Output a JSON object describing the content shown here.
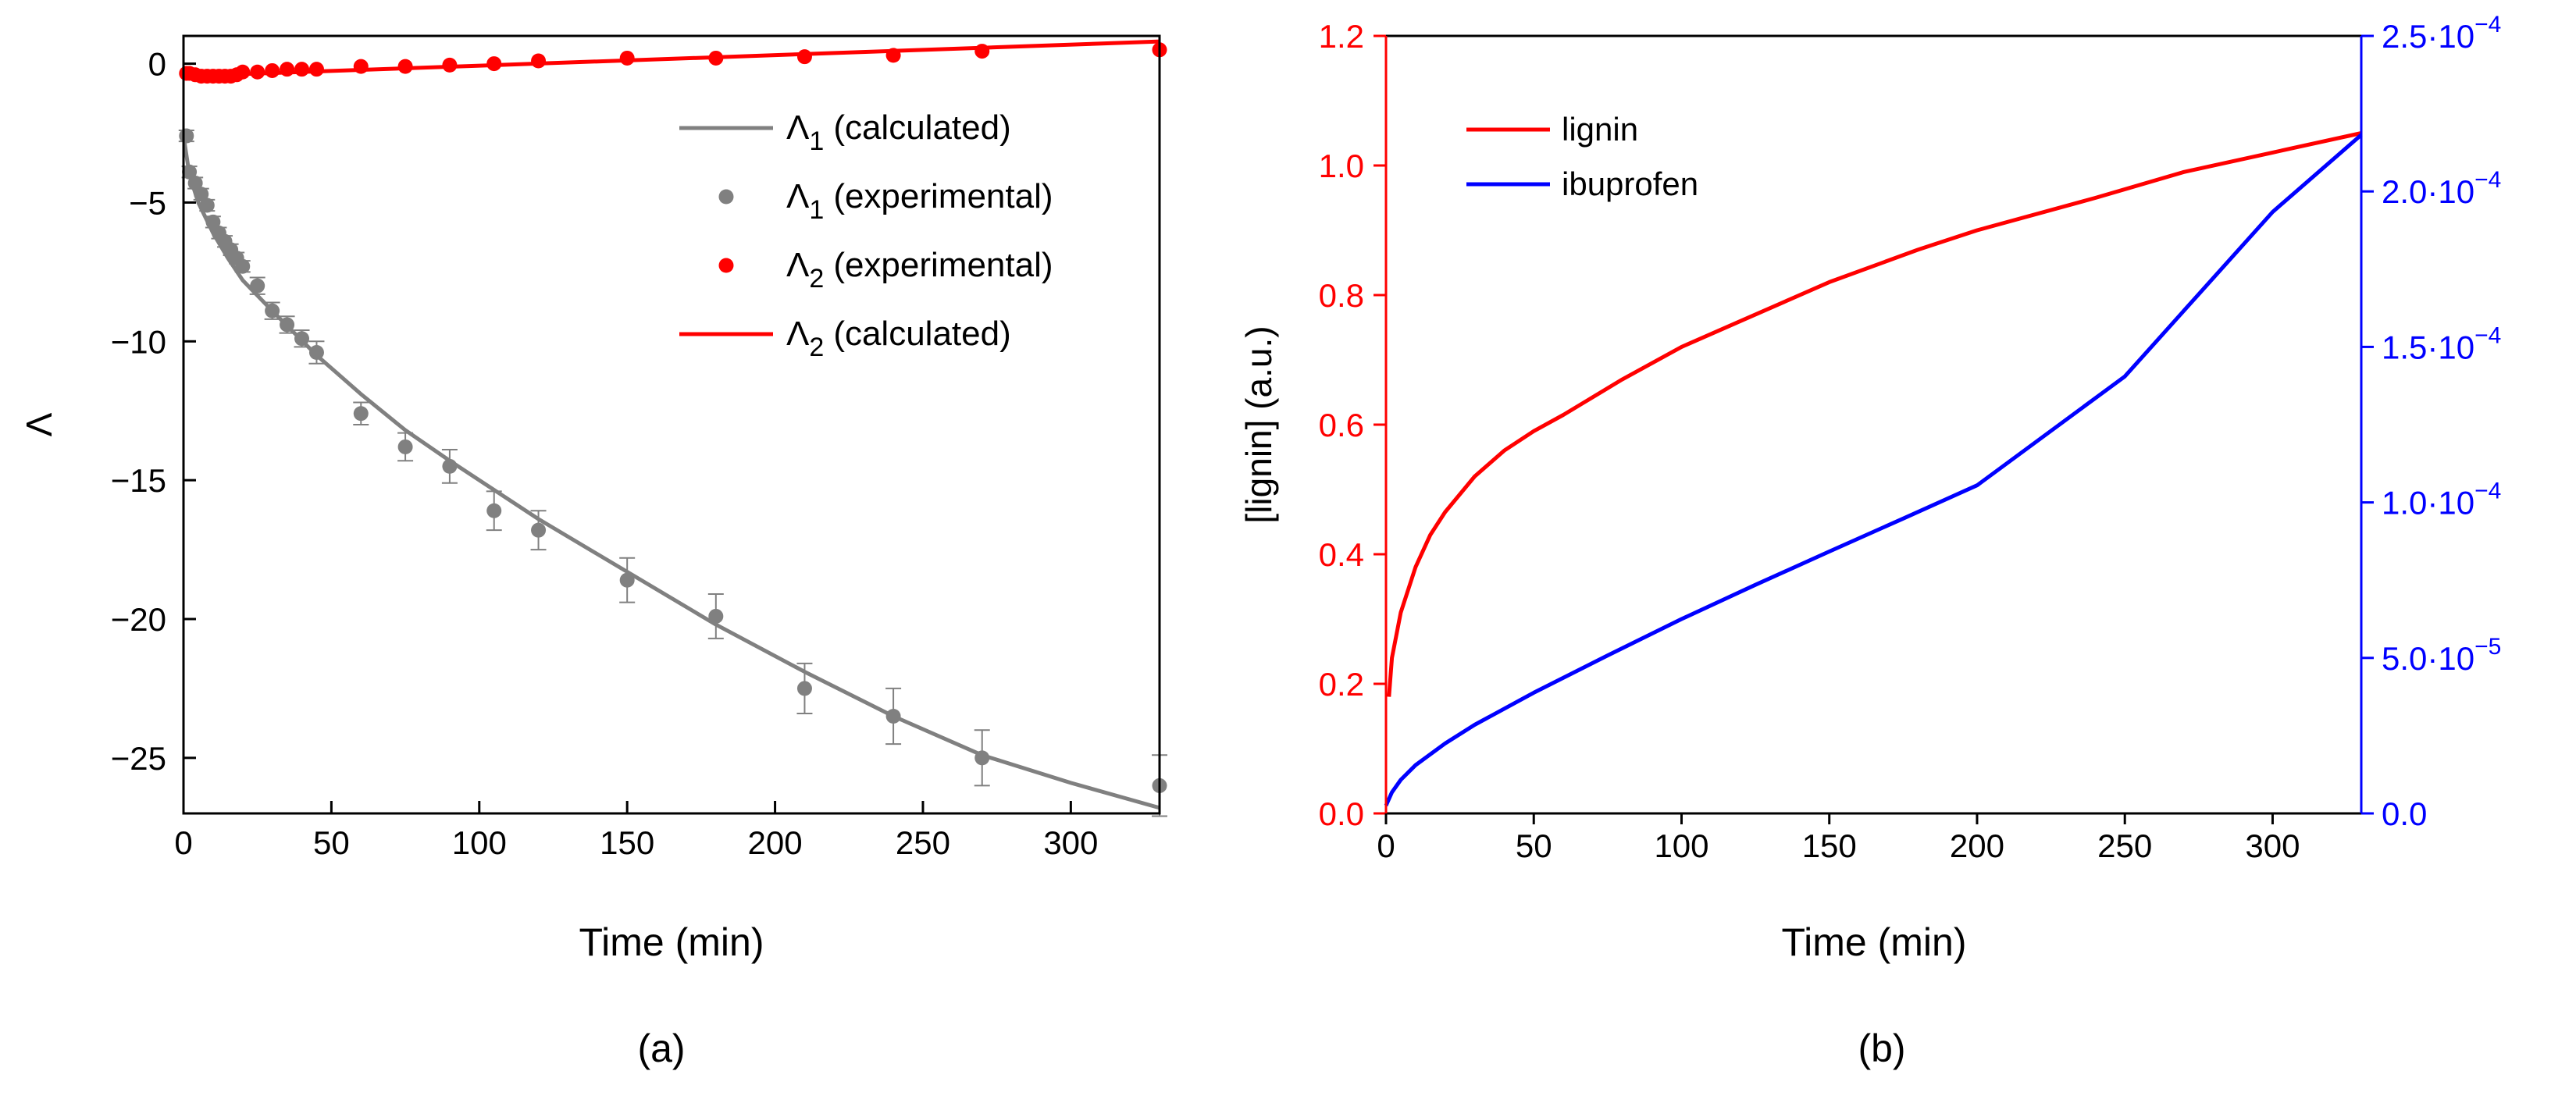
{
  "figure": {
    "panel_a_caption": "(a)",
    "panel_b_caption": "(b)"
  },
  "chart_data": [
    {
      "type": "scatter",
      "panel": "a",
      "xlabel": "Time (min)",
      "ylabel": "Λ",
      "xlim": [
        0,
        330
      ],
      "ylim": [
        -27,
        1
      ],
      "xticks": [
        0,
        50,
        100,
        150,
        200,
        250,
        300
      ],
      "yticks": [
        0,
        -5,
        -10,
        -15,
        -20,
        -25
      ],
      "legend_position": "top-right",
      "legend": [
        {
          "symbol": "Λ",
          "sub": "1",
          "text": "(calculated)",
          "style": "line",
          "color": "#808080"
        },
        {
          "symbol": "Λ",
          "sub": "1",
          "text": "(experimental)",
          "style": "marker",
          "color": "#808080"
        },
        {
          "symbol": "Λ",
          "sub": "2",
          "text": "(experimental)",
          "style": "marker",
          "color": "#ff0000"
        },
        {
          "symbol": "Λ",
          "sub": "2",
          "text": "(calculated)",
          "style": "line",
          "color": "#ff0000"
        }
      ],
      "series": [
        {
          "name": "Λ1 (experimental)",
          "style": "marker",
          "color": "#808080",
          "x": [
            1,
            2,
            4,
            6,
            8,
            10,
            12,
            14,
            16,
            18,
            20,
            25,
            30,
            35,
            40,
            45,
            60,
            75,
            90,
            105,
            120,
            150,
            180,
            210,
            240,
            270,
            330
          ],
          "y": [
            -2.6,
            -3.9,
            -4.3,
            -4.7,
            -5.1,
            -5.7,
            -6.1,
            -6.4,
            -6.7,
            -7.0,
            -7.3,
            -8.0,
            -8.9,
            -9.4,
            -9.9,
            -10.4,
            -12.6,
            -13.8,
            -14.5,
            -16.1,
            -16.8,
            -18.6,
            -19.9,
            -22.5,
            -23.5,
            -25.0,
            -26.0
          ],
          "err": [
            0.2,
            0.2,
            0.2,
            0.2,
            0.2,
            0.2,
            0.2,
            0.2,
            0.2,
            0.2,
            0.2,
            0.3,
            0.3,
            0.3,
            0.3,
            0.4,
            0.4,
            0.5,
            0.6,
            0.7,
            0.7,
            0.8,
            0.8,
            0.9,
            1.0,
            1.0,
            1.1
          ]
        },
        {
          "name": "Λ1 (calculated)",
          "style": "line",
          "color": "#808080",
          "x": [
            0,
            2,
            5,
            10,
            15,
            20,
            30,
            45,
            60,
            75,
            90,
            120,
            150,
            180,
            210,
            240,
            270,
            300,
            330
          ],
          "y": [
            -2.6,
            -4.0,
            -5.0,
            -6.1,
            -7.0,
            -7.8,
            -8.9,
            -10.5,
            -11.9,
            -13.2,
            -14.3,
            -16.4,
            -18.3,
            -20.2,
            -21.9,
            -23.5,
            -24.9,
            -25.9,
            -26.8
          ]
        },
        {
          "name": "Λ2 (experimental)",
          "style": "marker",
          "color": "#ff0000",
          "x": [
            1,
            2,
            4,
            6,
            8,
            10,
            12,
            14,
            16,
            18,
            20,
            25,
            30,
            35,
            40,
            45,
            60,
            75,
            90,
            105,
            120,
            150,
            180,
            210,
            240,
            270,
            330
          ],
          "y": [
            -0.35,
            -0.35,
            -0.4,
            -0.45,
            -0.45,
            -0.45,
            -0.45,
            -0.45,
            -0.45,
            -0.4,
            -0.3,
            -0.3,
            -0.25,
            -0.2,
            -0.2,
            -0.2,
            -0.1,
            -0.1,
            -0.05,
            0.0,
            0.1,
            0.2,
            0.2,
            0.25,
            0.3,
            0.45,
            0.5
          ]
        },
        {
          "name": "Λ2 (calculated)",
          "style": "line",
          "color": "#ff0000",
          "x": [
            0,
            330
          ],
          "y": [
            -0.45,
            0.8
          ]
        }
      ]
    },
    {
      "type": "line",
      "panel": "b",
      "xlabel": "Time (min)",
      "ylabel": "[lignin] (a.u.)",
      "xlim": [
        0,
        330
      ],
      "ylim": [
        0,
        1.2
      ],
      "y2lim": [
        0,
        0.00025
      ],
      "xticks": [
        0,
        50,
        100,
        150,
        200,
        250,
        300
      ],
      "yticks": [
        0.0,
        0.2,
        0.4,
        0.6,
        0.8,
        1.0,
        1.2
      ],
      "ytick_labels": [
        "0.0",
        "0.2",
        "0.4",
        "0.6",
        "0.8",
        "1.0",
        "1.2"
      ],
      "y2ticks": [
        0,
        5e-05,
        0.0001,
        0.00015,
        0.0002,
        0.00025
      ],
      "y2tick_labels": [
        {
          "mant": "0.0",
          "exp": ""
        },
        {
          "mant": "5.0·10",
          "exp": "−5"
        },
        {
          "mant": "1.0·10",
          "exp": "−4"
        },
        {
          "mant": "1.5·10",
          "exp": "−4"
        },
        {
          "mant": "2.0·10",
          "exp": "−4"
        },
        {
          "mant": "2.5·10",
          "exp": "−4"
        }
      ],
      "legend_position": "top-left",
      "legend": [
        {
          "text": "lignin",
          "color": "#ff0000"
        },
        {
          "text": "ibuprofen",
          "color": "#0000ff"
        }
      ],
      "series": [
        {
          "name": "lignin",
          "axis": "left",
          "color": "#ff0000",
          "x": [
            1,
            2,
            5,
            10,
            15,
            20,
            30,
            40,
            50,
            60,
            80,
            100,
            120,
            150,
            180,
            200,
            240,
            270,
            300,
            330
          ],
          "y": [
            0.18,
            0.24,
            0.31,
            0.38,
            0.43,
            0.465,
            0.52,
            0.56,
            0.59,
            0.615,
            0.67,
            0.72,
            0.76,
            0.82,
            0.87,
            0.9,
            0.95,
            0.99,
            1.02,
            1.05
          ]
        },
        {
          "name": "ibuprofen",
          "axis": "right",
          "color": "#0000ff",
          "x": [
            0,
            2,
            5,
            10,
            20,
            30,
            50,
            75,
            100,
            125,
            150,
            175,
            200,
            250,
            300,
            330
          ],
          "y": [
            2.5e-06,
            6.8e-06,
            1.08e-05,
            1.55e-05,
            2.25e-05,
            2.85e-05,
            3.88e-05,
            5.08e-05,
            6.25e-05,
            7.35e-05,
            8.42e-05,
            9.48e-05,
            0.0001055,
            0.0001405,
            0.0001934,
            0.0002182
          ]
        }
      ]
    }
  ]
}
